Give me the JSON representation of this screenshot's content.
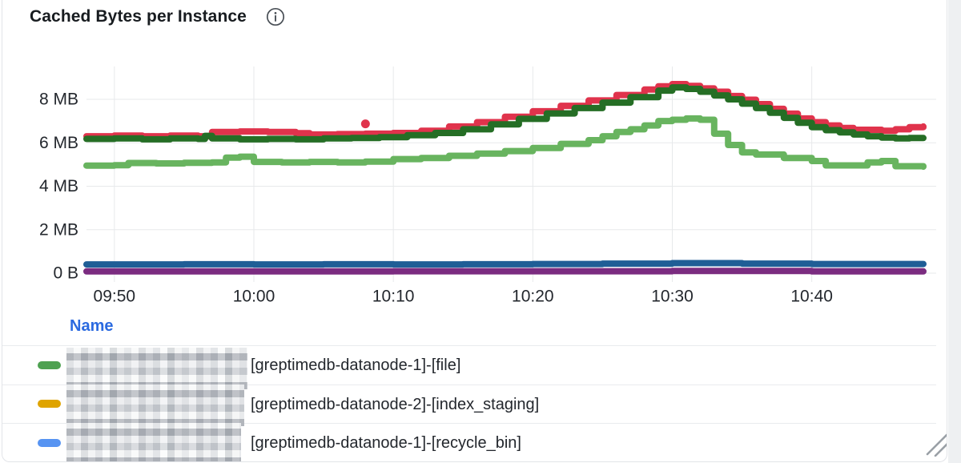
{
  "panel": {
    "title": "Cached Bytes per Instance"
  },
  "colors": {
    "grid": "#e7e9eb",
    "axis_text": "#23272d",
    "legend_header": "#2b6ae0",
    "panel_border": "#e2e4e8"
  },
  "legend": {
    "header": "Name",
    "rows": [
      {
        "marker_color": "#4ea151",
        "redacted": true,
        "label": "[greptimedb-datanode-1]-[file]"
      },
      {
        "marker_color": "#dfa400",
        "redacted": true,
        "label": "[greptimedb-datanode-2]-[index_staging]"
      },
      {
        "marker_color": "#5794f2",
        "redacted": true,
        "label": "[greptimedb-datanode-1]-[recycle_bin]"
      }
    ]
  },
  "chart_data": {
    "type": "line",
    "title": "Cached Bytes per Instance",
    "xlabel": "",
    "ylabel": "",
    "grid": true,
    "legend_position": "bottom-table",
    "x_axis": {
      "t0": 588,
      "t1": 648,
      "ticks": [
        {
          "t": 590,
          "label": "09:50"
        },
        {
          "t": 600,
          "label": "10:00"
        },
        {
          "t": 610,
          "label": "10:10"
        },
        {
          "t": 620,
          "label": "10:20"
        },
        {
          "t": 630,
          "label": "10:30"
        },
        {
          "t": 640,
          "label": "10:40"
        }
      ]
    },
    "y_axis": {
      "unit": "bytes",
      "min": 0,
      "max": 9.5,
      "ticks": [
        {
          "v": 0,
          "label": "0 B"
        },
        {
          "v": 2,
          "label": "2 MB"
        },
        {
          "v": 4,
          "label": "4 MB"
        },
        {
          "v": 6,
          "label": "6 MB"
        },
        {
          "v": 8,
          "label": "8 MB"
        }
      ]
    },
    "series": [
      {
        "name": "purple-series",
        "color": "#7b2c80",
        "width": 8,
        "points": [
          [
            588,
            0.08
          ],
          [
            600,
            0.08
          ],
          [
            610,
            0.09
          ],
          [
            620,
            0.09
          ],
          [
            630,
            0.1
          ],
          [
            640,
            0.08
          ],
          [
            648,
            0.08
          ]
        ]
      },
      {
        "name": "blue-series",
        "color": "#1f5e96",
        "width": 8,
        "points": [
          [
            588,
            0.4
          ],
          [
            595,
            0.41
          ],
          [
            600,
            0.4
          ],
          [
            605,
            0.41
          ],
          [
            610,
            0.4
          ],
          [
            615,
            0.41
          ],
          [
            620,
            0.42
          ],
          [
            625,
            0.44
          ],
          [
            630,
            0.46
          ],
          [
            635,
            0.44
          ],
          [
            640,
            0.42
          ],
          [
            648,
            0.42
          ]
        ]
      },
      {
        "name": "light-green-series",
        "color": "#68b45f",
        "width": 8,
        "points": [
          [
            588,
            4.95
          ],
          [
            590,
            4.97
          ],
          [
            591,
            5.07
          ],
          [
            593,
            5.05
          ],
          [
            595,
            5.08
          ],
          [
            597,
            5.1
          ],
          [
            598,
            5.32
          ],
          [
            599,
            5.36
          ],
          [
            600,
            5.12
          ],
          [
            602,
            5.1
          ],
          [
            604,
            5.12
          ],
          [
            606,
            5.1
          ],
          [
            608,
            5.13
          ],
          [
            610,
            5.25
          ],
          [
            612,
            5.3
          ],
          [
            614,
            5.4
          ],
          [
            616,
            5.5
          ],
          [
            618,
            5.62
          ],
          [
            620,
            5.76
          ],
          [
            622,
            5.95
          ],
          [
            624,
            6.12
          ],
          [
            625,
            6.3
          ],
          [
            626,
            6.5
          ],
          [
            627,
            6.62
          ],
          [
            628,
            6.8
          ],
          [
            629,
            7.0
          ],
          [
            630,
            7.06
          ],
          [
            631,
            7.12
          ],
          [
            632,
            7.06
          ],
          [
            633,
            6.42
          ],
          [
            634,
            5.9
          ],
          [
            635,
            5.56
          ],
          [
            636,
            5.46
          ],
          [
            638,
            5.3
          ],
          [
            640,
            5.16
          ],
          [
            641,
            4.96
          ],
          [
            643,
            4.96
          ],
          [
            644,
            5.1
          ],
          [
            645,
            5.16
          ],
          [
            646,
            4.92
          ],
          [
            648,
            4.9
          ]
        ]
      },
      {
        "name": "red-series",
        "color": "#e0334c",
        "width": 8,
        "outliers": [
          [
            608,
            6.87
          ]
        ],
        "points": [
          [
            588,
            6.3
          ],
          [
            590,
            6.33
          ],
          [
            592,
            6.3
          ],
          [
            594,
            6.33
          ],
          [
            596,
            6.3
          ],
          [
            597,
            6.5
          ],
          [
            599,
            6.52
          ],
          [
            601,
            6.5
          ],
          [
            603,
            6.44
          ],
          [
            604,
            6.38
          ],
          [
            606,
            6.4
          ],
          [
            608,
            6.42
          ],
          [
            610,
            6.45
          ],
          [
            612,
            6.55
          ],
          [
            614,
            6.75
          ],
          [
            616,
            6.95
          ],
          [
            618,
            7.2
          ],
          [
            620,
            7.45
          ],
          [
            622,
            7.7
          ],
          [
            624,
            7.95
          ],
          [
            626,
            8.2
          ],
          [
            628,
            8.45
          ],
          [
            629,
            8.6
          ],
          [
            630,
            8.7
          ],
          [
            631,
            8.62
          ],
          [
            632,
            8.5
          ],
          [
            633,
            8.35
          ],
          [
            634,
            8.15
          ],
          [
            635,
            7.98
          ],
          [
            636,
            7.78
          ],
          [
            637,
            7.56
          ],
          [
            638,
            7.34
          ],
          [
            639,
            7.12
          ],
          [
            640,
            6.95
          ],
          [
            641,
            6.8
          ],
          [
            642,
            6.68
          ],
          [
            643,
            6.6
          ],
          [
            644,
            6.6
          ],
          [
            645,
            6.55
          ],
          [
            646,
            6.62
          ],
          [
            647,
            6.72
          ],
          [
            648,
            6.75
          ]
        ]
      },
      {
        "name": "dark-green-series",
        "color": "#256e25",
        "width": 8,
        "points": [
          [
            588,
            6.18
          ],
          [
            590,
            6.2
          ],
          [
            592,
            6.16
          ],
          [
            594,
            6.2
          ],
          [
            596,
            6.18
          ],
          [
            596.5,
            6.32
          ],
          [
            597,
            6.2
          ],
          [
            599,
            6.16
          ],
          [
            601,
            6.18
          ],
          [
            603,
            6.16
          ],
          [
            605,
            6.2
          ],
          [
            607,
            6.22
          ],
          [
            609,
            6.26
          ],
          [
            611,
            6.35
          ],
          [
            613,
            6.45
          ],
          [
            615,
            6.62
          ],
          [
            617,
            6.85
          ],
          [
            619,
            7.1
          ],
          [
            621,
            7.35
          ],
          [
            623,
            7.6
          ],
          [
            625,
            7.85
          ],
          [
            627,
            8.1
          ],
          [
            629,
            8.4
          ],
          [
            630,
            8.55
          ],
          [
            631,
            8.48
          ],
          [
            632,
            8.35
          ],
          [
            633,
            8.18
          ],
          [
            634,
            8.0
          ],
          [
            635,
            7.8
          ],
          [
            636,
            7.6
          ],
          [
            637,
            7.38
          ],
          [
            638,
            7.15
          ],
          [
            639,
            6.92
          ],
          [
            640,
            6.72
          ],
          [
            641,
            6.58
          ],
          [
            642,
            6.48
          ],
          [
            643,
            6.38
          ],
          [
            644,
            6.3
          ],
          [
            645,
            6.24
          ],
          [
            646,
            6.2
          ],
          [
            647,
            6.22
          ],
          [
            648,
            6.22
          ]
        ]
      }
    ]
  }
}
